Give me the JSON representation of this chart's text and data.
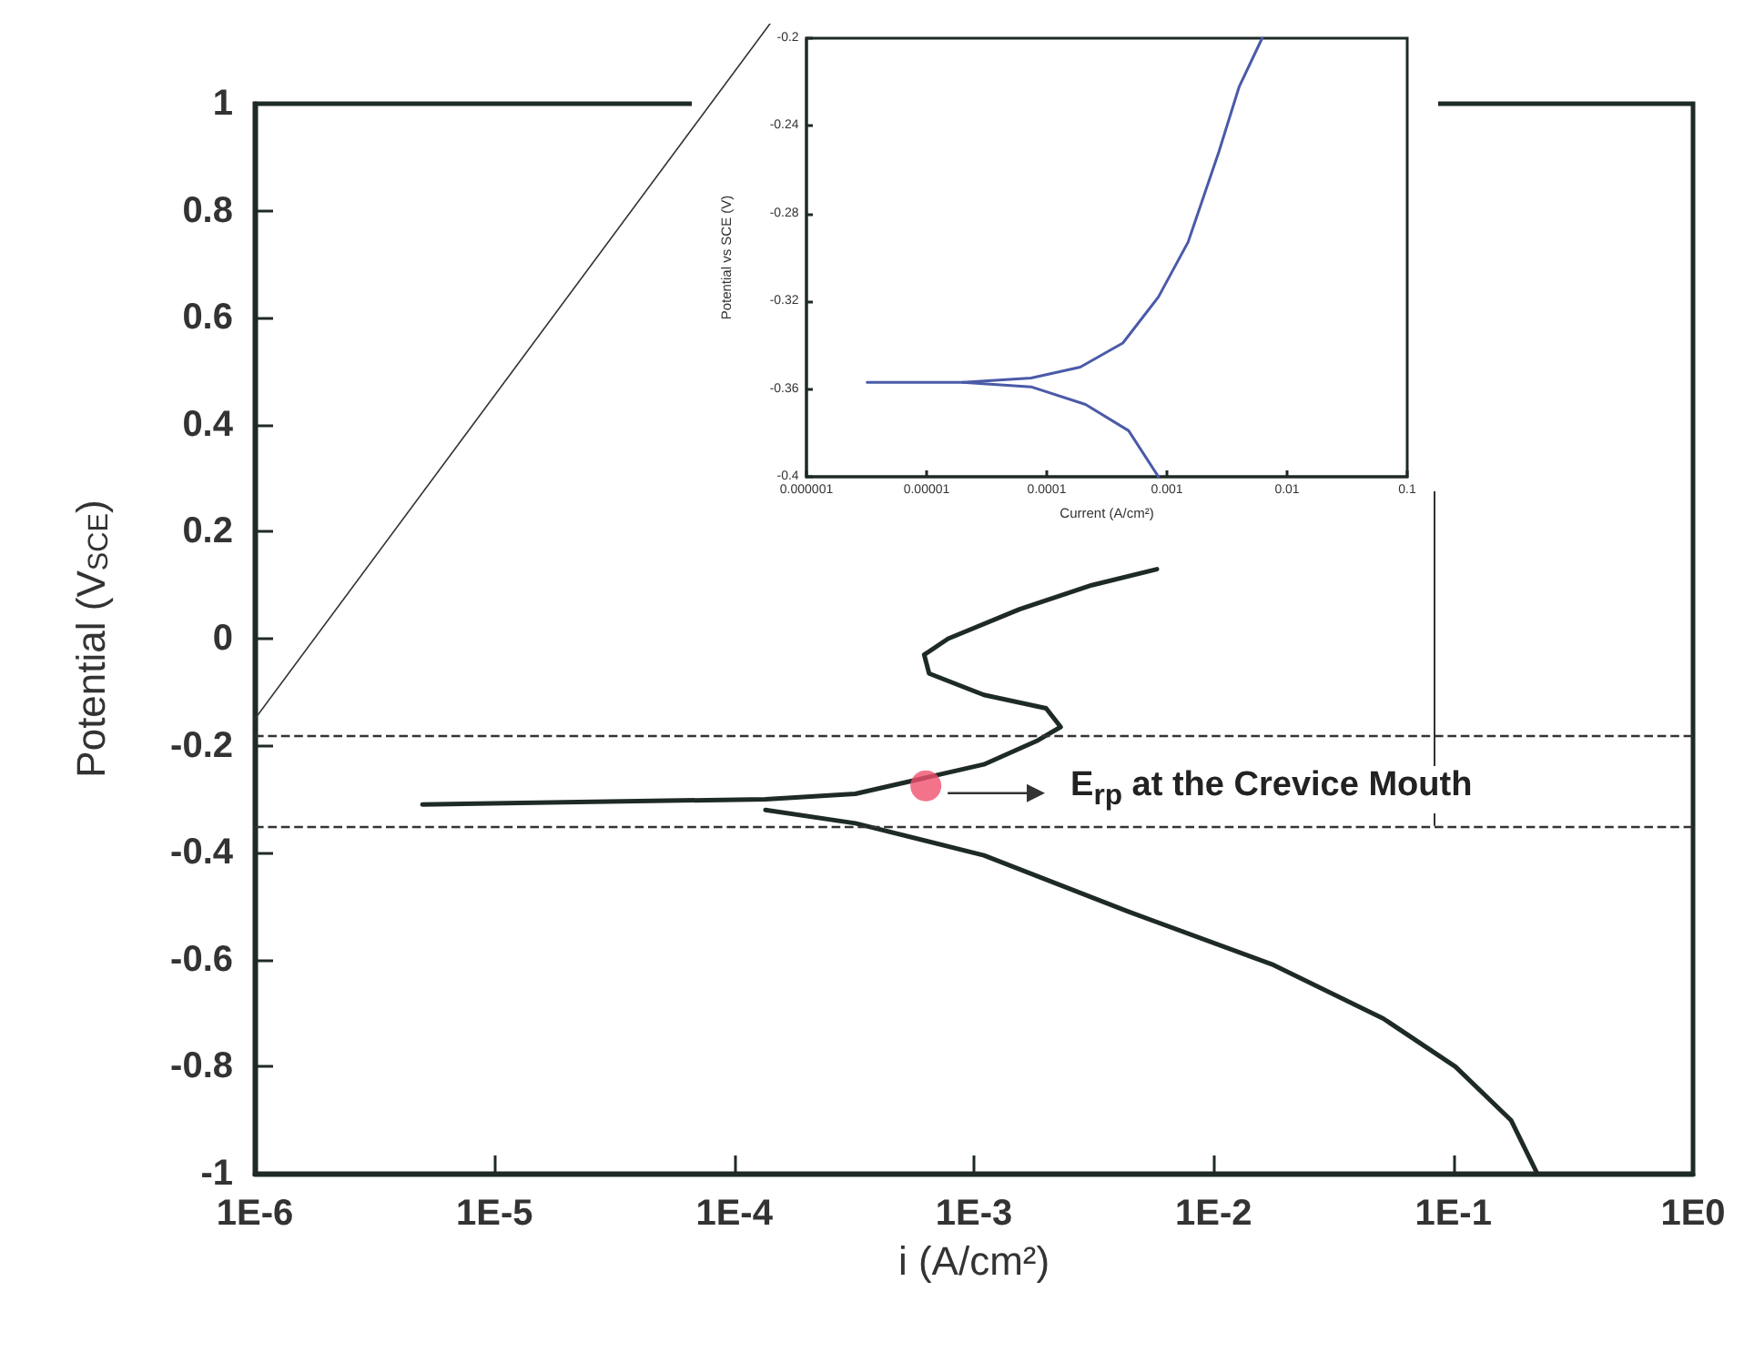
{
  "chart_data": [
    {
      "type": "line",
      "xlabel": "i (A/cm²)",
      "ylabel": "Potential (V$_{SCE}$)",
      "log": "x",
      "marker": "none",
      "xlim": [
        1e-06,
        1
      ],
      "xticks": [
        {
          "value": 1e-06,
          "label": "1E-6"
        },
        {
          "value": 1e-05,
          "label": "1E-5"
        },
        {
          "value": 0.0001,
          "label": "1E-4"
        },
        {
          "value": 0.001,
          "label": "1E-3"
        },
        {
          "value": 0.01,
          "label": "1E-2"
        },
        {
          "value": 0.1,
          "label": "1E-1"
        },
        {
          "value": 1,
          "label": "1E0"
        }
      ],
      "ylim": [
        -1,
        1
      ],
      "yticks": [
        -1,
        -0.8,
        -0.6,
        -0.4,
        -0.2,
        0,
        0.2,
        0.4,
        0.6,
        0.8,
        1
      ],
      "series": [
        {
          "color": "#1e2a26",
          "x": [
            5e-06,
            0.000135,
            0.00032,
            0.0011,
            0.00185,
            0.0023,
            0.002,
            0.0011,
            0.00065,
            0.00062,
            0.00078,
            0.00155,
            0.0031,
            0.0058
          ],
          "values": [
            -0.31,
            -0.3,
            -0.29,
            -0.235,
            -0.19,
            -0.165,
            -0.13,
            -0.105,
            -0.065,
            -0.03,
            0,
            0.055,
            0.1,
            0.13
          ]
        },
        {
          "color": "#1e2a26",
          "x": [
            0.000135,
            0.00032,
            0.0011,
            0.0044,
            0.0178,
            0.051,
            0.102,
            0.174,
            0.224
          ],
          "values": [
            -0.32,
            -0.345,
            -0.405,
            -0.51,
            -0.61,
            -0.71,
            -0.8,
            -0.9,
            -1
          ]
        },
        {
          "type": "scatter",
          "marker": "circle",
          "color": "#f0506e",
          "x": [
            0.00063
          ],
          "values": [
            -0.275
          ]
        }
      ],
      "ref_lines": [
        {
          "axis": "y",
          "value": -0.18,
          "line_style": "dashed",
          "color": "#333333"
        },
        {
          "axis": "y",
          "value": -0.35,
          "line_style": "dashed",
          "color": "#333333"
        }
      ],
      "annotations": [
        "E$_{rp}$ at the Crevice Mouth"
      ]
    },
    {
      "type": "line",
      "xlabel": "Current (A/cm²)",
      "ylabel": "Potential vs SCE (V)",
      "log": "x",
      "marker": "none",
      "xlim": [
        1e-06,
        0.1
      ],
      "xticks": [
        {
          "value": 1e-06,
          "label": "0.000001"
        },
        {
          "value": 1e-05,
          "label": "0.00001"
        },
        0.0001,
        0.001,
        0.01,
        0.1
      ],
      "ylim": [
        -0.4,
        -0.2
      ],
      "yticks": [
        -0.4,
        -0.36,
        -0.32,
        -0.28,
        -0.24,
        -0.2
      ],
      "series": [
        {
          "color": "#4a5aa8",
          "x": [
            3.2e-06,
            2e-05,
            7.4e-05,
            0.00019,
            0.00043,
            0.00085,
            0.0015,
            0.0027,
            0.004,
            0.0062
          ],
          "values": [
            -0.357,
            -0.357,
            -0.355,
            -0.35,
            -0.339,
            -0.318,
            -0.293,
            -0.252,
            -0.222,
            -0.2
          ]
        },
        {
          "color": "#4a5aa8",
          "x": [
            2e-05,
            7.4e-05,
            0.00021,
            0.00048,
            0.00085
          ],
          "values": [
            -0.357,
            -0.359,
            -0.367,
            -0.379,
            -0.4
          ]
        }
      ]
    }
  ]
}
